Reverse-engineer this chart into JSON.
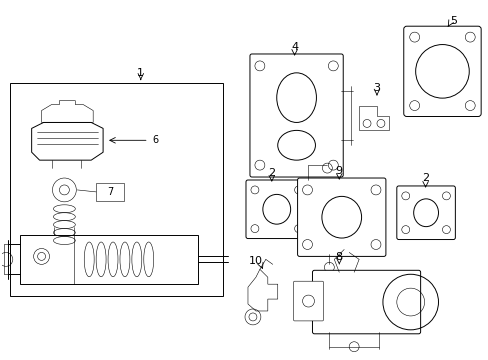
{
  "bg_color": "#ffffff",
  "lc": "#000000",
  "lw": 0.7,
  "thin": 0.4,
  "fig_w": 4.89,
  "fig_h": 3.6,
  "dpi": 100
}
